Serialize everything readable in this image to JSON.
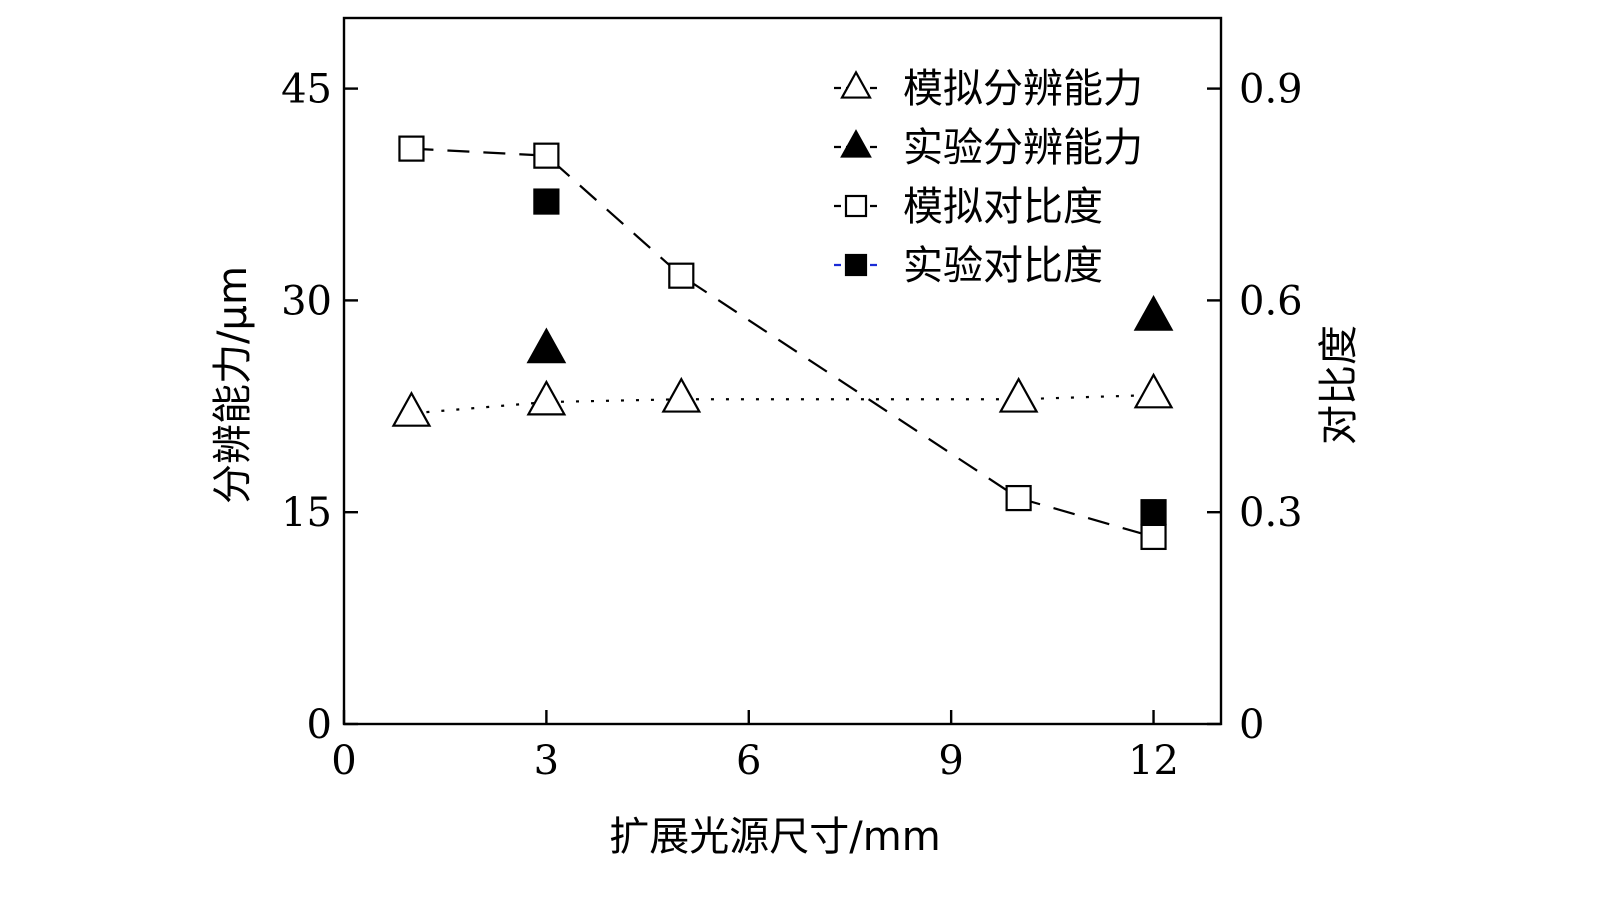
{
  "chart_data": {
    "type": "scatter",
    "xlabel": "扩展光源尺寸/mm",
    "ylabel_left": "分辨能力/μm",
    "ylabel_right": "对比度",
    "x_ticks": [
      "0",
      "3",
      "6",
      "9",
      "12"
    ],
    "y_left_ticks": [
      "0",
      "15",
      "30",
      "45"
    ],
    "y_right_ticks": [
      "0",
      "0.3",
      "0.6",
      "0.9"
    ],
    "xlim": [
      0,
      13
    ],
    "ylim_left": [
      0,
      50
    ],
    "ylim_right": [
      0,
      1.0
    ],
    "grid": false,
    "legend_position": "top-right",
    "series": [
      {
        "name": "模拟分辨能力",
        "axis": "left",
        "marker": "triangle-open",
        "line": "dotted",
        "x": [
          1,
          3,
          5,
          10,
          12
        ],
        "y": [
          22.0,
          22.8,
          23.0,
          23.0,
          23.3
        ]
      },
      {
        "name": "实验分辨能力",
        "axis": "left",
        "marker": "triangle-filled",
        "line": "none",
        "x": [
          3,
          12
        ],
        "y": [
          26.5,
          28.8
        ]
      },
      {
        "name": "模拟对比度",
        "axis": "right",
        "marker": "square-open",
        "line": "dashed",
        "x": [
          1,
          3,
          5,
          10,
          12
        ],
        "y": [
          0.815,
          0.805,
          0.635,
          0.32,
          0.265
        ]
      },
      {
        "name": "实验对比度",
        "axis": "right",
        "marker": "square-filled",
        "line": "none",
        "x": [
          3,
          12
        ],
        "y": [
          0.74,
          0.3
        ]
      }
    ]
  }
}
